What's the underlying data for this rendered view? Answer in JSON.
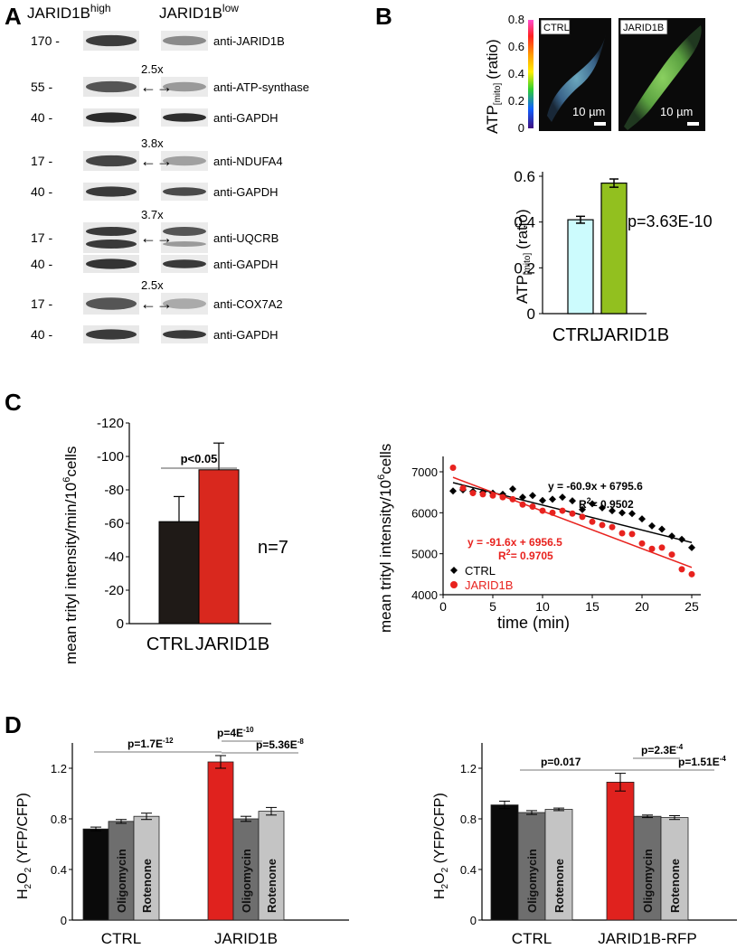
{
  "panels": {
    "A": "A",
    "B": "B",
    "C": "C",
    "D": "D"
  },
  "panelA": {
    "col_high_base": "JARID1B",
    "col_high_sup": "high",
    "col_low_base": "JARID1B",
    "col_low_sup": "low",
    "rows": [
      {
        "mw": "170 -",
        "label": "anti-JARID1B",
        "fold": "",
        "fill": "#3c3c3c",
        "low_fill": "#8a8a8a"
      },
      {
        "mw": "55 -",
        "label": "anti-ATP-synthase",
        "fold": "2.5x",
        "fill": "#555",
        "low_fill": "#9a9a9a"
      },
      {
        "mw": "40 -",
        "label": "anti-GAPDH",
        "fold": "",
        "fill": "#2a2a2a",
        "low_fill": "#2e2e2e"
      },
      {
        "mw": "17 -",
        "label": "anti-NDUFA4",
        "fold": "3.8x",
        "fill": "#444",
        "low_fill": "#a0a0a0"
      },
      {
        "mw": "40 -",
        "label": "anti-GAPDH",
        "fold": "",
        "fill": "#3a3a3a",
        "low_fill": "#4a4a4a"
      },
      {
        "mw": "17 -",
        "label": "anti-UQCRB",
        "fold": "3.7x",
        "fill": "#3a3a3a",
        "low_fill": "#555"
      },
      {
        "mw": "40 -",
        "label": "anti-GAPDH",
        "fold": "",
        "fill": "#333",
        "low_fill": "#3a3a3a"
      },
      {
        "mw": "17 -",
        "label": "anti-COX7A2",
        "fold": "2.5x",
        "fill": "#555",
        "low_fill": "#aaa"
      },
      {
        "mw": "40 -",
        "label": "anti-GAPDH",
        "fold": "",
        "fill": "#3a3a3a",
        "low_fill": "#3a3a3a"
      }
    ],
    "fold_arrow_glyph": "←→"
  },
  "panelB": {
    "colorbar_label": "ATP",
    "colorbar_sub": "[mito]",
    "colorbar_unit": "(ratio)",
    "colorbar_ticks": [
      "0.8",
      "0.6",
      "0.4",
      "0.2",
      "0"
    ],
    "img_ctrl_label": "CTRL",
    "img_jarid_label": "JARID1B",
    "scale_text": "10 µm",
    "p_text": "p=3.63E-10",
    "ylabel_main": "ATP",
    "ylabel_sub": "[mito]",
    "ylabel_unit": "(ratio)",
    "colors": {
      "ctrl": "#ccfbfd",
      "jarid": "#92c01f"
    }
  },
  "panelC": {
    "bar_sig": "p<0.05",
    "n_text": "n=7",
    "bar_ylabel": "mean trityl intensity/min/10",
    "bar_ylabel_sup": "6",
    "bar_ylabel_end": "cells",
    "line_ylabel": "mean trityl intensity/10",
    "line_ylabel_sup": "6",
    "line_ylabel_end": "cells",
    "eq_black": "y = -60.9x + 6795.6",
    "r2_black": "= 0.9502",
    "eq_red": "y = -91.6x + 6956.5",
    "r2_red": "= 0.9705",
    "r_letter": "R",
    "r_sup": "2"
  },
  "panelD": {
    "ylabel_main": "H",
    "ylabel_sub1": "2",
    "ylabel_mid": "O",
    "ylabel_sub2": "2",
    "ylabel_unit": " (YFP/CFP)",
    "left_sig": [
      {
        "base": "p=1.7E",
        "exp": "-12"
      },
      {
        "base": "p=4E",
        "exp": "-10"
      },
      {
        "base": "p=5.36E",
        "exp": "-8"
      }
    ],
    "right_sig": [
      {
        "base": "p=0.017",
        "exp": ""
      },
      {
        "base": "p=2.3E",
        "exp": "-4"
      },
      {
        "base": "p=1.51E",
        "exp": "-4"
      }
    ],
    "bar_text_oligo": "Oligomycin",
    "bar_text_rot": "Rotenone",
    "colors": {
      "black": "#0a0a0a",
      "red": "#e0221e",
      "oligo": "#6e6e6e",
      "rot": "#c4c4c4"
    }
  },
  "chart_data": [
    {
      "type": "bar",
      "categories": [
        "CTRL",
        "JARID1B"
      ],
      "values": [
        0.41,
        0.57
      ],
      "errors": [
        0.015,
        0.018
      ],
      "xlabel": "",
      "ylabel": "ATP[mito] (ratio)",
      "ylim": [
        0,
        0.6
      ],
      "yticks": [
        "0",
        "0.2",
        "0.4",
        "0.6"
      ]
    },
    {
      "type": "bar",
      "categories": [
        "CTRL",
        "JARID1B"
      ],
      "values": [
        -61,
        -92
      ],
      "errors": [
        15,
        16
      ],
      "xlabel": "",
      "ylabel": "mean trityl intensity/min/10^6cells",
      "ylim": [
        0,
        -120
      ],
      "yticks": [
        "0",
        "-20",
        "-40",
        "-60",
        "-80",
        "-100",
        "-120"
      ],
      "colors": [
        "#1f1a17",
        "#d9281e"
      ]
    },
    {
      "type": "scatter",
      "xlabel": "time (min)",
      "ylabel": "mean trityl intensity/10^6cells",
      "xlim": [
        0,
        25
      ],
      "ylim": [
        4000,
        7000
      ],
      "xticks": [
        "0",
        "5",
        "10",
        "15",
        "20",
        "25"
      ],
      "yticks": [
        "4000",
        "5000",
        "6000",
        "7000"
      ],
      "legend": "bottom-left",
      "series": [
        {
          "name": "CTRL",
          "color": "#000000",
          "marker": "diamond",
          "x": [
            1,
            2,
            3,
            4,
            5,
            6,
            7,
            8,
            9,
            10,
            11,
            12,
            13,
            14,
            15,
            16,
            17,
            18,
            19,
            20,
            21,
            22,
            23,
            24,
            25
          ],
          "y": [
            6530,
            6560,
            6520,
            6500,
            6480,
            6450,
            6580,
            6380,
            6420,
            6300,
            6330,
            6380,
            6290,
            6080,
            6220,
            6120,
            6050,
            6000,
            5980,
            5850,
            5680,
            5600,
            5430,
            5350,
            5150
          ],
          "fit": {
            "slope": -60.9,
            "intercept": 6795.6
          }
        },
        {
          "name": "JARID1B",
          "color": "#e8221e",
          "marker": "circle",
          "x": [
            1,
            2,
            3,
            4,
            5,
            6,
            7,
            8,
            9,
            10,
            11,
            12,
            13,
            14,
            15,
            16,
            17,
            18,
            19,
            20,
            21,
            22,
            23,
            24,
            25
          ],
          "y": [
            7100,
            6600,
            6480,
            6450,
            6420,
            6380,
            6330,
            6200,
            6150,
            6050,
            6000,
            6050,
            5980,
            5900,
            5780,
            5700,
            5650,
            5500,
            5480,
            5250,
            5120,
            5150,
            4980,
            4620,
            4500
          ],
          "fit": {
            "slope": -91.6,
            "intercept": 6956.5
          }
        }
      ]
    },
    {
      "type": "bar",
      "categories": [
        "CTRL",
        "JARID1B"
      ],
      "series": [
        {
          "values": [
            0.72,
            1.25
          ],
          "errors": [
            0.015,
            0.05
          ]
        },
        {
          "name": "Oligomycin",
          "values": [
            0.78,
            0.8
          ],
          "errors": [
            0.015,
            0.02
          ]
        },
        {
          "name": "Rotenone",
          "values": [
            0.82,
            0.86
          ],
          "errors": [
            0.025,
            0.03
          ]
        }
      ],
      "ylabel": "H2O2 (YFP/CFP)",
      "ylim": [
        0,
        1.4
      ],
      "yticks": [
        "0",
        "0.4",
        "0.8",
        "1.2"
      ]
    },
    {
      "type": "bar",
      "categories": [
        "CTRL",
        "JARID1B-RFP"
      ],
      "series": [
        {
          "values": [
            0.91,
            1.09
          ],
          "errors": [
            0.03,
            0.07
          ]
        },
        {
          "name": "Oligomycin",
          "values": [
            0.85,
            0.82
          ],
          "errors": [
            0.015,
            0.01
          ]
        },
        {
          "name": "Rotenone",
          "values": [
            0.875,
            0.81
          ],
          "errors": [
            0.01,
            0.015
          ]
        }
      ],
      "ylabel": "H2O2 (YFP/CFP)",
      "ylim": [
        0,
        1.4
      ],
      "yticks": [
        "0",
        "0.4",
        "0.8",
        "1.2"
      ]
    }
  ]
}
